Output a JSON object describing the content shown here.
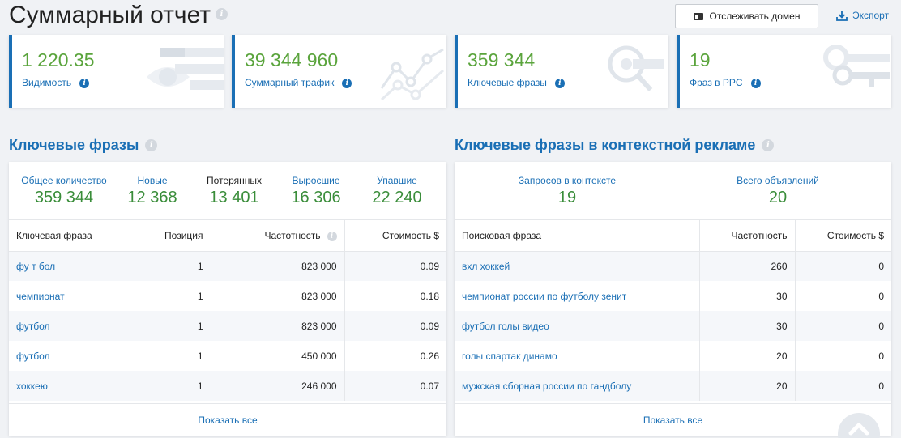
{
  "page": {
    "title": "Суммарный отчет"
  },
  "toolbar": {
    "track_label": "Отслеживать домен",
    "export_label": "Экспорт"
  },
  "stats": [
    {
      "value": "1 220.35",
      "label": "Видимость"
    },
    {
      "value": "39 344 960",
      "label": "Суммарный трафик"
    },
    {
      "value": "359 344",
      "label": "Ключевые фразы"
    },
    {
      "value": "19",
      "label": "Фраз в PPC"
    }
  ],
  "keywords": {
    "title": "Ключевые фразы",
    "summary": [
      {
        "label": "Общее количество",
        "value": "359 344"
      },
      {
        "label": "Новые",
        "value": "12 368"
      },
      {
        "label": "Потерянных",
        "value": "13 401"
      },
      {
        "label": "Выросшие",
        "value": "16 306"
      },
      {
        "label": "Упавшие",
        "value": "22 240"
      }
    ],
    "columns": [
      "Ключевая фраза",
      "Позиция",
      "Частотность",
      "Стоимость $"
    ],
    "rows": [
      {
        "phrase": "фу т бол",
        "position": "1",
        "frequency": "823 000",
        "cost": "0.09"
      },
      {
        "phrase": "чемпионат",
        "position": "1",
        "frequency": "823 000",
        "cost": "0.18"
      },
      {
        "phrase": "футбол",
        "position": "1",
        "frequency": "823 000",
        "cost": "0.09"
      },
      {
        "phrase": "футбол",
        "position": "1",
        "frequency": "450 000",
        "cost": "0.26"
      },
      {
        "phrase": "хоккею",
        "position": "1",
        "frequency": "246 000",
        "cost": "0.07"
      }
    ],
    "show_all": "Показать все"
  },
  "ppc": {
    "title": "Ключевые фразы в контекстной рекламе",
    "summary": [
      {
        "label": "Запросов в контексте",
        "value": "19"
      },
      {
        "label": "Всего объявлений",
        "value": "20"
      }
    ],
    "columns": [
      "Поисковая фраза",
      "Частотность",
      "Стоимость $"
    ],
    "rows": [
      {
        "phrase": "вхл хоккей",
        "frequency": "260",
        "cost": "0"
      },
      {
        "phrase": "чемпионат россии по футболу зенит",
        "frequency": "30",
        "cost": "0"
      },
      {
        "phrase": "футбол голы видео",
        "frequency": "30",
        "cost": "0"
      },
      {
        "phrase": "голы спартак динамо",
        "frequency": "20",
        "cost": "0"
      },
      {
        "phrase": "мужская сборная россии по гандболу",
        "frequency": "20",
        "cost": "0"
      }
    ],
    "show_all": "Показать все"
  },
  "colors": {
    "accent": "#1a6fb5",
    "value_green": "#5aa43c",
    "summary_green": "#3a8d3a"
  }
}
